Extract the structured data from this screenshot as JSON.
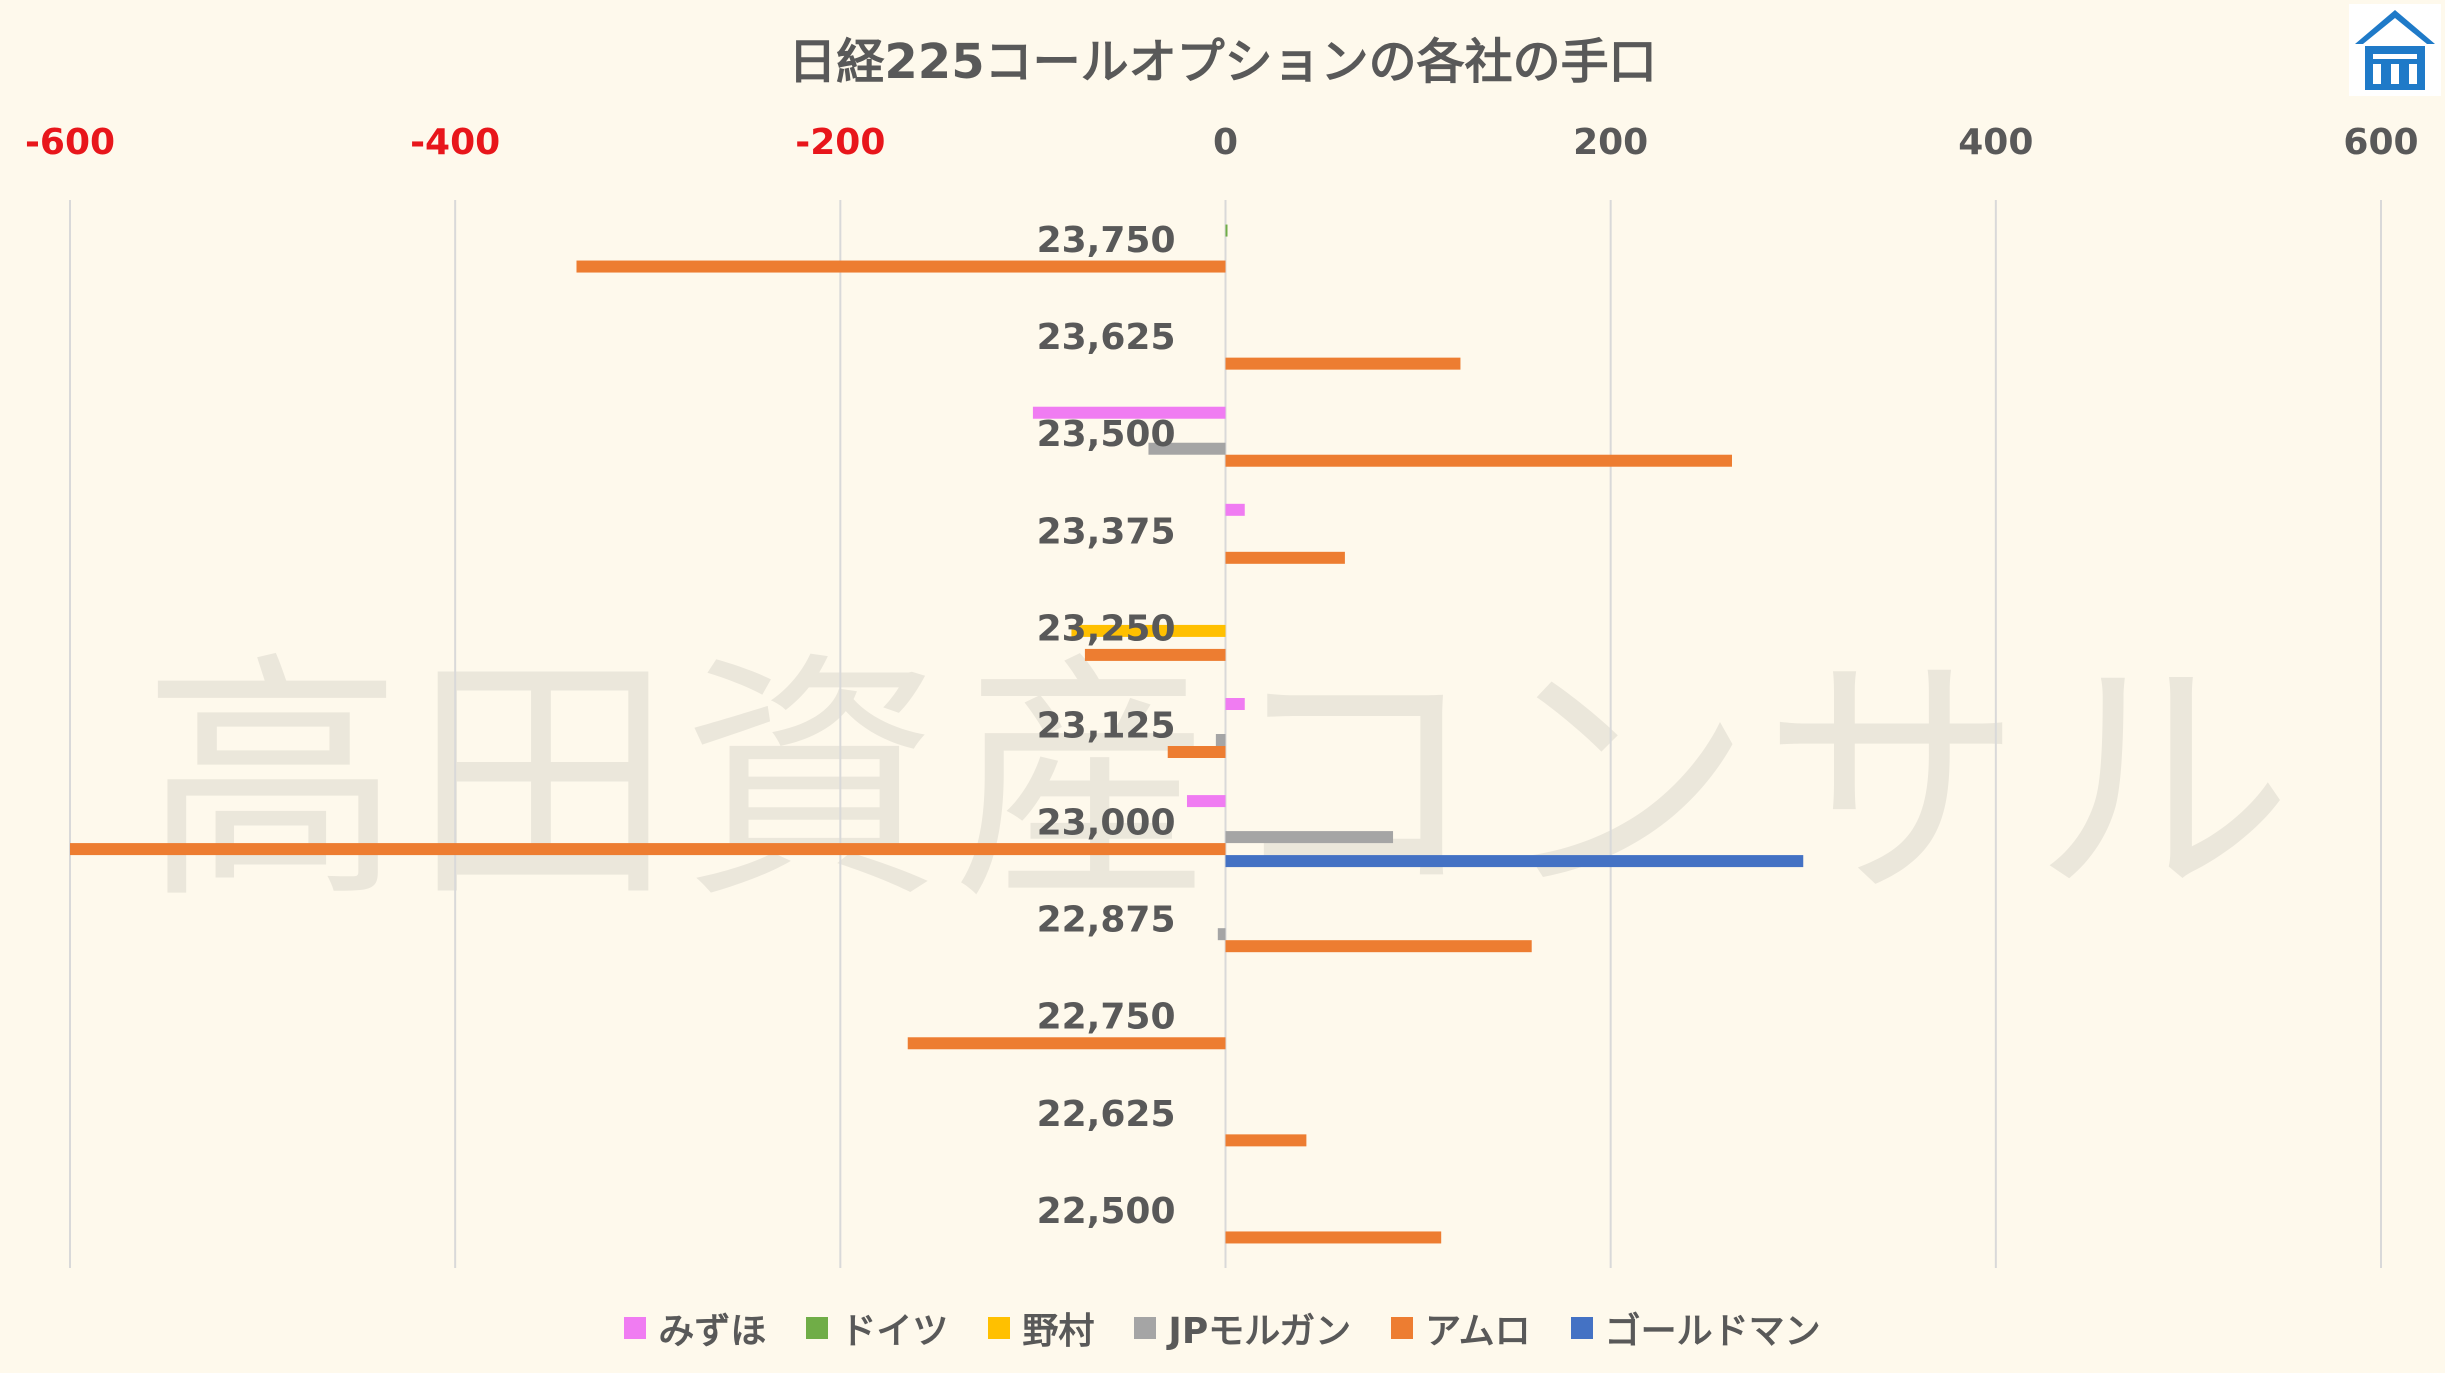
{
  "chart_data": {
    "type": "bar",
    "orientation": "horizontal",
    "title": "日経225コールオプションの各社の手口",
    "watermark": "高田資産コンサル",
    "xlim": [
      -600,
      600
    ],
    "x_ticks": [
      "-600",
      "-400",
      "-200",
      "0",
      "200",
      "400",
      "600"
    ],
    "negative_tick_color": "#e8161b",
    "positive_tick_color": "#595959",
    "grid": true,
    "legend_position": "bottom",
    "categories": [
      "23,750",
      "23,625",
      "23,500",
      "23,375",
      "23,250",
      "23,125",
      "23,000",
      "22,875",
      "22,750",
      "22,625",
      "22,500"
    ],
    "series": [
      {
        "name": "みずほ",
        "color": "#f07cf2",
        "values": [
          0,
          0,
          -100,
          10,
          0,
          10,
          -20,
          0,
          0,
          0,
          0
        ]
      },
      {
        "name": "ドイツ",
        "color": "#70ad47",
        "values": [
          1,
          0,
          0,
          0,
          0,
          0,
          0,
          0,
          0,
          0,
          0
        ]
      },
      {
        "name": "野村",
        "color": "#ffc000",
        "values": [
          0,
          0,
          0,
          0,
          -80,
          0,
          0,
          0,
          0,
          0,
          0
        ]
      },
      {
        "name": "JPモルガン",
        "color": "#a5a5a5",
        "values": [
          0,
          0,
          -40,
          0,
          0,
          -5,
          87,
          -4,
          0,
          0,
          0
        ]
      },
      {
        "name": "アムロ",
        "color": "#ed7d31",
        "values": [
          -337,
          122,
          263,
          62,
          -73,
          -30,
          -600,
          159,
          -165,
          42,
          112
        ]
      },
      {
        "name": "ゴールドマン",
        "color": "#4472c4",
        "values": [
          0,
          0,
          0,
          0,
          0,
          0,
          300,
          0,
          0,
          0,
          0
        ]
      }
    ]
  },
  "logo": {
    "name": "takata-logo-icon",
    "color": "#1f7ac8"
  }
}
